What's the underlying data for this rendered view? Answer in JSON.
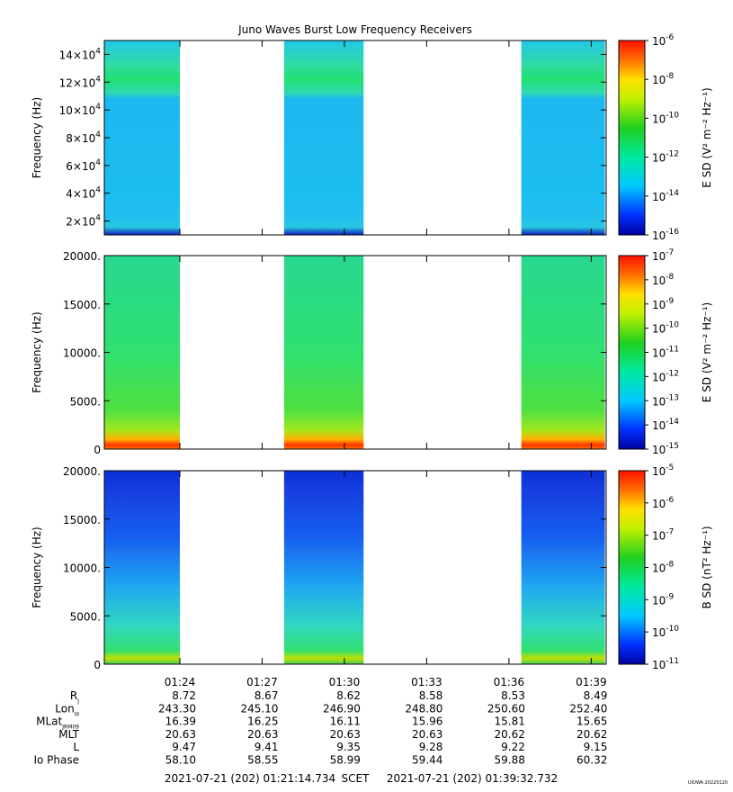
{
  "title": "Juno Waves Burst Low Frequency Receivers",
  "credit": "UIOWA 20220120",
  "chart_data": [
    {
      "type": "heatmap",
      "panel": "top",
      "ylabel": "Frequency (Hz)",
      "ylim": [
        10000,
        150000
      ],
      "y_ticks": [
        {
          "value": 20000,
          "mant": "2×10",
          "exp": "4"
        },
        {
          "value": 40000,
          "mant": "4×10",
          "exp": "4"
        },
        {
          "value": 60000,
          "mant": "6×10",
          "exp": "4"
        },
        {
          "value": 80000,
          "mant": "8×10",
          "exp": "4"
        },
        {
          "value": 100000,
          "mant": "10×10",
          "exp": "4"
        },
        {
          "value": 120000,
          "mant": "12×10",
          "exp": "4"
        },
        {
          "value": 140000,
          "mant": "14×10",
          "exp": "4"
        }
      ],
      "colorbar_label": "E SD (V² m⁻² Hz⁻¹)",
      "colorbar_ticks": [
        "-16",
        "-14",
        "-12",
        "-10",
        "-8",
        "-6"
      ]
    },
    {
      "type": "heatmap",
      "panel": "middle",
      "ylabel": "Frequency (Hz)",
      "ylim": [
        0,
        20000
      ],
      "y_ticks": [
        "0",
        "5000.",
        "10000.",
        "15000.",
        "20000."
      ],
      "colorbar_label": "E SD (V² m⁻² Hz⁻¹)",
      "colorbar_ticks": [
        "-15",
        "-14",
        "-13",
        "-12",
        "-11",
        "-10",
        "-9",
        "-8",
        "-7"
      ]
    },
    {
      "type": "heatmap",
      "panel": "bottom",
      "ylabel": "Frequency (Hz)",
      "ylim": [
        0,
        20000
      ],
      "y_ticks": [
        "0",
        "5000.",
        "10000.",
        "15000.",
        "20000."
      ],
      "colorbar_label": "B SD (nT² Hz⁻¹)",
      "colorbar_ticks": [
        "-11",
        "-10",
        "-9",
        "-8",
        "-7",
        "-6",
        "-5"
      ]
    }
  ],
  "time_axis": {
    "start_minutes": 81.2456,
    "end_minutes": 99.5455,
    "data_segments_minutes": [
      [
        81.25,
        84.0
      ],
      [
        87.8,
        90.7
      ],
      [
        96.45,
        99.5
      ]
    ],
    "tick_labels": [
      "01:24",
      "01:27",
      "01:30",
      "01:33",
      "01:36",
      "01:39"
    ],
    "tick_minutes": [
      84,
      87,
      90,
      93,
      96,
      99
    ]
  },
  "ephemeris": {
    "rows": [
      {
        "name": "Rj",
        "label": "R",
        "sub": "J",
        "values": [
          "8.72",
          "8.67",
          "8.62",
          "8.58",
          "8.53",
          "8.49"
        ]
      },
      {
        "name": "Lon",
        "label": "Lon",
        "sub": "III",
        "values": [
          "243.30",
          "245.10",
          "246.90",
          "248.80",
          "250.60",
          "252.40"
        ]
      },
      {
        "name": "MLat",
        "label": "MLat",
        "sub": "JRM09",
        "values": [
          "16.39",
          "16.25",
          "16.11",
          "15.96",
          "15.81",
          "15.65"
        ]
      },
      {
        "name": "MLT",
        "label": "MLT",
        "sub": "",
        "values": [
          "20.63",
          "20.63",
          "20.63",
          "20.63",
          "20.62",
          "20.62"
        ]
      },
      {
        "name": "L",
        "label": "L",
        "sub": "",
        "values": [
          "9.47",
          "9.41",
          "9.35",
          "9.28",
          "9.22",
          "9.15"
        ]
      },
      {
        "name": "IoPhase",
        "label": "Io Phase",
        "sub": "",
        "values": [
          "58.10",
          "58.55",
          "58.99",
          "59.44",
          "59.88",
          "60.32"
        ]
      }
    ]
  },
  "footer": {
    "start": "2021-07-21 (202) 01:21:14.734",
    "scet": "SCET",
    "end": "2021-07-21 (202) 01:39:32.732"
  }
}
